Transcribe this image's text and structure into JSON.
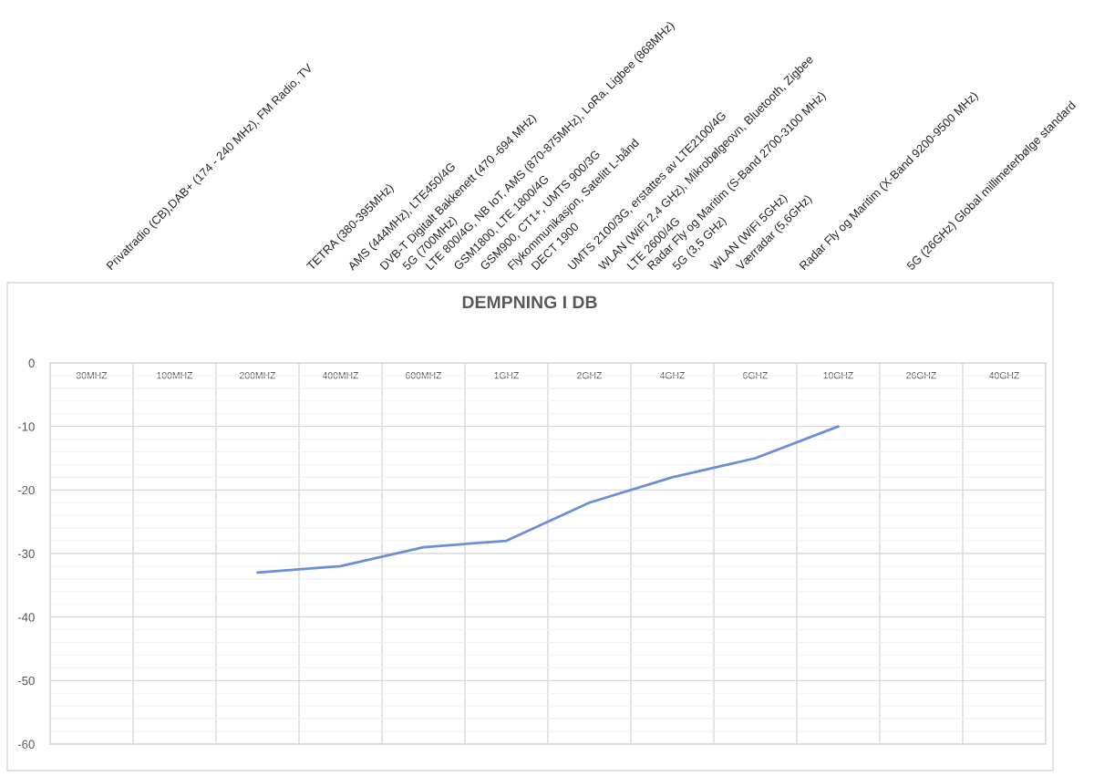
{
  "chart_data": {
    "type": "line",
    "title": "DEMPNING I DB",
    "categories": [
      "30MHZ",
      "100MHZ",
      "200MHZ",
      "400MHZ",
      "600MHZ",
      "1GHZ",
      "2GHZ",
      "4GHZ",
      "6GHZ",
      "10GHZ",
      "26GHZ",
      "40GHZ"
    ],
    "series": [
      {
        "color": "#6b8fd5",
        "values": [
          null,
          null,
          -33,
          -32,
          -29,
          -28,
          -22,
          -18,
          -15,
          -10,
          null,
          null
        ]
      }
    ],
    "ylim": [
      -60,
      0
    ],
    "yticks": [
      0,
      -10,
      -20,
      -30,
      -40,
      -50,
      -60
    ],
    "grid": true,
    "line_style": "solid",
    "annotations": [
      "Privatradio (CB),DAB+ (174 - 240 MHz), FM Radio, TV",
      "TETRA (380-395MHz)",
      "AMS (444MHz), LTE450/4G",
      "DVB-T Digitalt Bakkenett (470 -694 MHz)",
      "5G (700MHz)",
      "LTE 800/4G, NB IoT, AMS (870-875MHz), LoRa, Ligbee (868MHz)",
      "GSM1800, LTE 1800/4G",
      "GSM900, CT1+, UMTS 900/3G",
      "Flykommunikasjon, Satelitt L-bånd",
      "DECT 1900",
      "UMTS 2100/3G, erstattes av LTE2100/4G",
      "WLAN (WiFi 2,4 GHz), Mikrobølgeovn, Bluetooth, Zigbee",
      "LTE 2600/4G",
      "Radar Fly og Maritim (S-Band 2700-3100 MHz)",
      "5G (3,5 GHz)",
      "WLAN (WiFi 5GHz)",
      "Værradar (5,6GHz)",
      "Radar Fly og Maritim (X-Band 9200-9500 MHz)",
      "5G (26GHz) Global millimeterbølge standard"
    ]
  }
}
